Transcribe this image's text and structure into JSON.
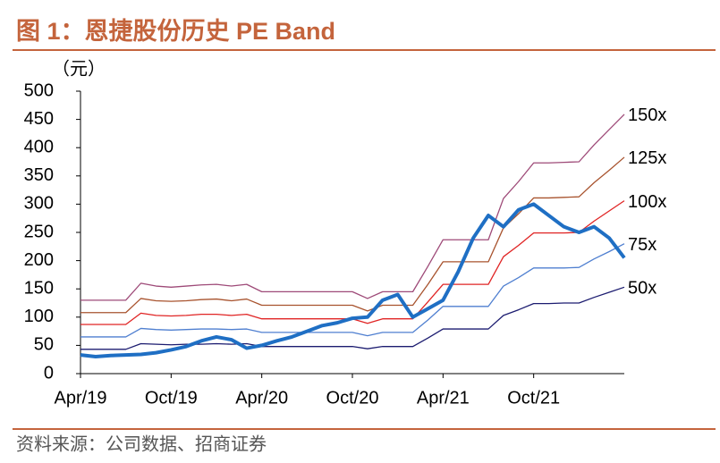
{
  "chart_data": {
    "type": "line",
    "title": "图 1：恩捷股份历史 PE Band",
    "y_label": "（元）",
    "source": "资料来源：公司数据、招商证券",
    "x": [
      "Apr/19",
      "May/19",
      "Jun/19",
      "Jul/19",
      "Aug/19",
      "Sep/19",
      "Oct/19",
      "Nov/19",
      "Dec/19",
      "Jan/20",
      "Feb/20",
      "Mar/20",
      "Apr/20",
      "May/20",
      "Jun/20",
      "Jul/20",
      "Aug/20",
      "Sep/20",
      "Oct/20",
      "Nov/20",
      "Dec/20",
      "Jan/21",
      "Feb/21",
      "Mar/21",
      "Apr/21",
      "May/21",
      "Jun/21",
      "Jul/21",
      "Aug/21",
      "Sep/21",
      "Oct/21",
      "Nov/21",
      "Dec/21",
      "Jan/22",
      "Feb/22",
      "Mar/22",
      "Apr/22"
    ],
    "xticks": [
      "Apr/19",
      "Oct/19",
      "Apr/20",
      "Oct/20",
      "Apr/21",
      "Oct/21"
    ],
    "ylim": [
      0,
      500
    ],
    "yticks": [
      0,
      50,
      100,
      150,
      200,
      250,
      300,
      350,
      400,
      450,
      500
    ],
    "series": [
      {
        "name": "150x",
        "color": "#9e4a78",
        "width": 1.3,
        "values": [
          130,
          130,
          130,
          130,
          160,
          155,
          153,
          155,
          157,
          158,
          155,
          158,
          145,
          145,
          145,
          145,
          145,
          145,
          145,
          133,
          145,
          145,
          145,
          190,
          237,
          237,
          237,
          237,
          310,
          340,
          373,
          373,
          374,
          375,
          405,
          432,
          459
        ]
      },
      {
        "name": "125x",
        "color": "#a8532e",
        "width": 1.3,
        "values": [
          108,
          108,
          108,
          108,
          133,
          129,
          128,
          129,
          131,
          132,
          129,
          132,
          121,
          121,
          121,
          121,
          121,
          121,
          121,
          111,
          121,
          121,
          121,
          158,
          198,
          198,
          198,
          198,
          258,
          283,
          311,
          311,
          312,
          313,
          338,
          360,
          383
        ]
      },
      {
        "name": "100x",
        "color": "#e02424",
        "width": 1.3,
        "values": [
          87,
          87,
          87,
          87,
          107,
          103,
          102,
          103,
          105,
          105,
          103,
          105,
          97,
          97,
          97,
          97,
          97,
          97,
          97,
          89,
          97,
          97,
          97,
          127,
          158,
          158,
          158,
          158,
          207,
          227,
          249,
          249,
          249,
          250,
          270,
          288,
          306
        ]
      },
      {
        "name": "75x",
        "color": "#4f7fd0",
        "width": 1.3,
        "values": [
          65,
          65,
          65,
          65,
          80,
          78,
          77,
          78,
          79,
          79,
          78,
          79,
          73,
          73,
          73,
          73,
          73,
          73,
          73,
          67,
          73,
          73,
          73,
          95,
          119,
          119,
          119,
          119,
          155,
          170,
          187,
          187,
          187,
          188,
          203,
          216,
          230
        ]
      },
      {
        "name": "50x",
        "color": "#1c1c70",
        "width": 1.3,
        "values": [
          43,
          43,
          43,
          43,
          53,
          52,
          51,
          52,
          52,
          53,
          52,
          53,
          48,
          48,
          48,
          48,
          48,
          48,
          48,
          44,
          48,
          48,
          48,
          63,
          79,
          79,
          79,
          79,
          103,
          113,
          124,
          124,
          125,
          125,
          135,
          144,
          153
        ]
      },
      {
        "color": "#1f6fc4",
        "width": 4,
        "values": [
          33,
          30,
          32,
          33,
          34,
          37,
          42,
          48,
          58,
          65,
          60,
          45,
          50,
          58,
          65,
          75,
          85,
          90,
          98,
          100,
          130,
          140,
          100,
          115,
          130,
          180,
          240,
          280,
          260,
          290,
          300,
          280,
          260,
          250,
          260,
          240,
          205
        ]
      }
    ]
  }
}
